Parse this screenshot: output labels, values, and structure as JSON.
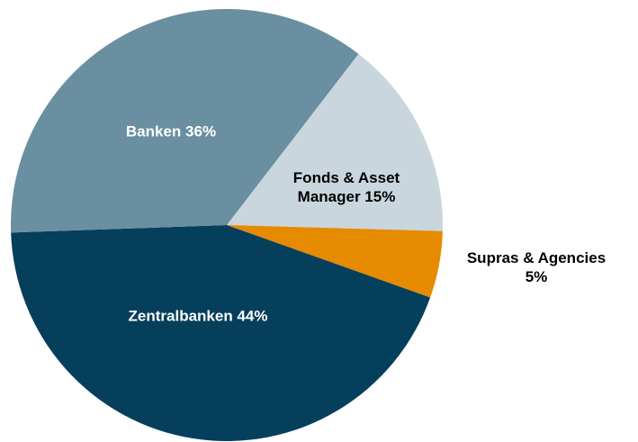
{
  "chart_data": {
    "type": "pie",
    "values": [
      15,
      5,
      44,
      36
    ],
    "labels": [
      [
        "Fonds & Asset",
        "Manager 15%"
      ],
      [
        "Supras & Agencies",
        "5%"
      ],
      [
        "Zentralbanken 44%"
      ],
      [
        "Banken 36%"
      ]
    ],
    "colors": [
      "#c9d6dd",
      "#e68a00",
      "#063f5c",
      "#6a8fa0"
    ],
    "label_colors": [
      "#000000",
      "#000000",
      "#ffffff",
      "#ffffff"
    ]
  }
}
